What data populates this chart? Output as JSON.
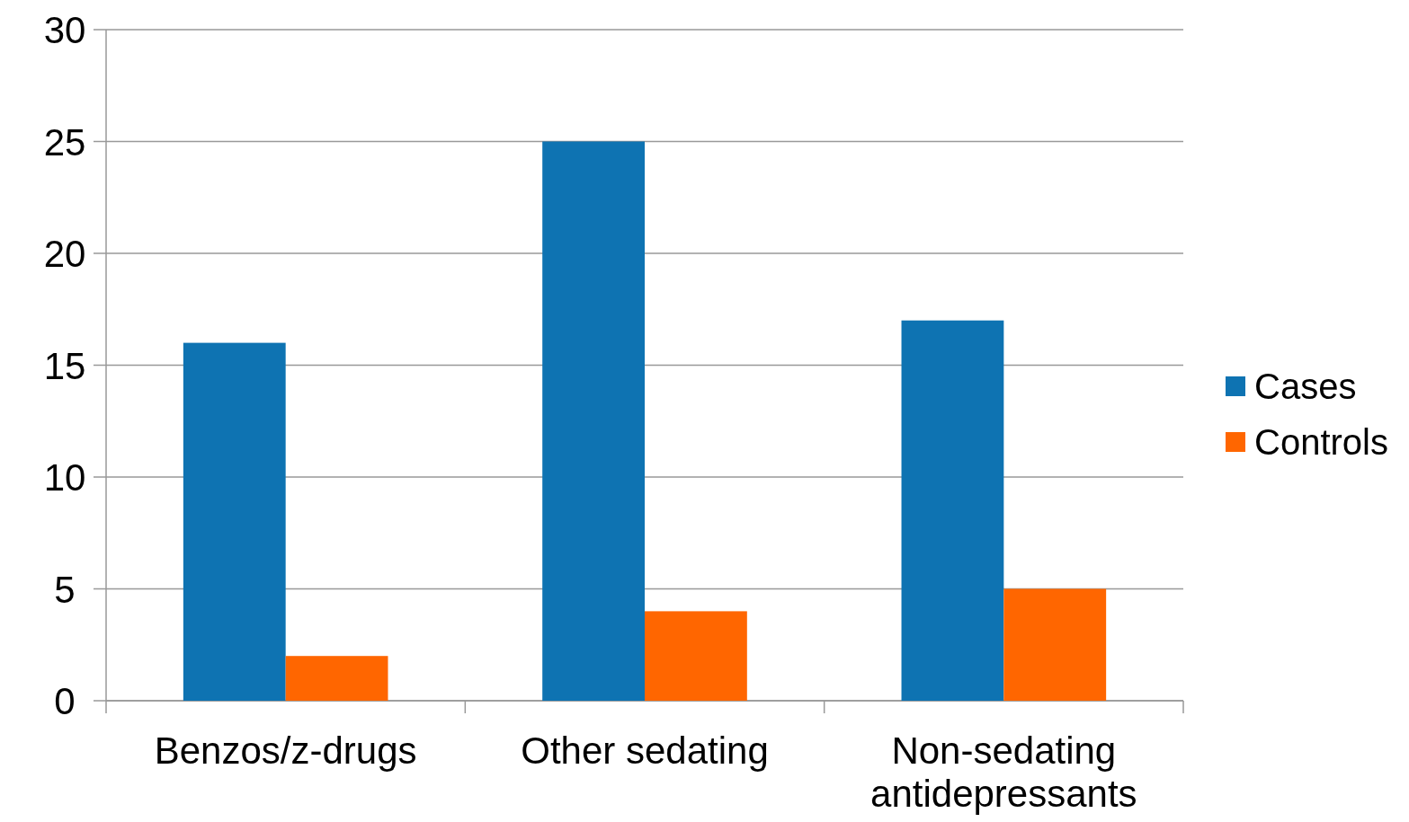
{
  "chart_data": {
    "type": "bar",
    "categories": [
      "Benzos/z-drugs",
      "Other sedating",
      "Non-sedating antidepressants"
    ],
    "series": [
      {
        "name": "Cases",
        "color": "#0e73b2",
        "values": [
          16,
          25,
          17
        ]
      },
      {
        "name": "Controls",
        "color": "#ff6600",
        "values": [
          2,
          4,
          5
        ]
      }
    ],
    "ylim": [
      0,
      30
    ],
    "yticks": [
      0,
      5,
      10,
      15,
      20,
      25,
      30
    ],
    "grid": "y",
    "legend": "right"
  }
}
